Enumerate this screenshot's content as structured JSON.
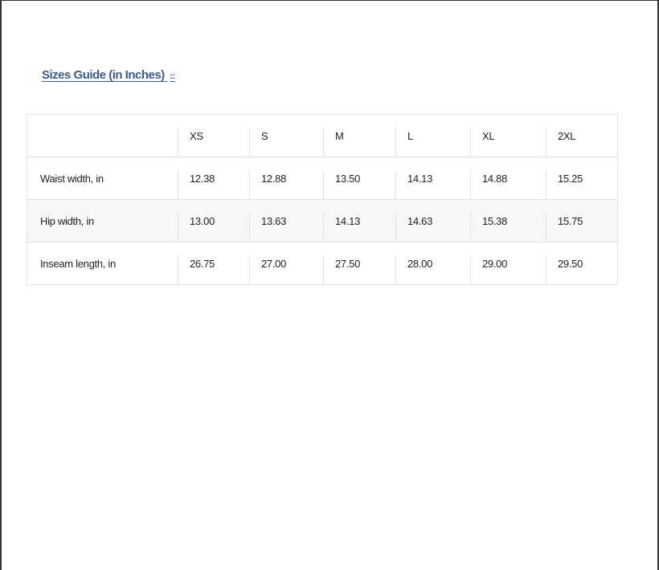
{
  "title": "Sizes Guide (in Inches)",
  "title_separator": "::",
  "table": {
    "headers": [
      "",
      "XS",
      "S",
      "M",
      "L",
      "XL",
      "2XL"
    ],
    "rows": [
      {
        "label": "Waist width, in",
        "values": [
          "12.38",
          "12.88",
          "13.50",
          "14.13",
          "14.88",
          "15.25"
        ]
      },
      {
        "label": "Hip width, in",
        "values": [
          "13.00",
          "13.63",
          "14.13",
          "14.63",
          "15.38",
          "15.75"
        ]
      },
      {
        "label": "Inseam length, in",
        "values": [
          "26.75",
          "27.00",
          "27.50",
          "28.00",
          "29.00",
          "29.50"
        ]
      }
    ]
  },
  "colors": {
    "title": "#3b5b8c",
    "alt_row": "#f7f7f7",
    "border": "#e2e2e2"
  }
}
